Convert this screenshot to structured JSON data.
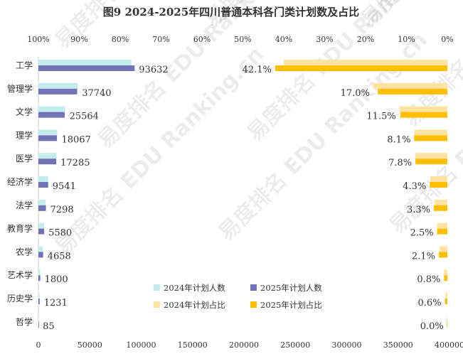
{
  "chart_data": {
    "title": "图9  2024-2025年四川普通本科各门类计划数及占比",
    "categories": [
      "工学",
      "管理学",
      "文学",
      "理学",
      "医学",
      "经济学",
      "法学",
      "教育学",
      "农学",
      "艺术学",
      "历史学",
      "哲学"
    ],
    "left_panel": {
      "type": "bar",
      "orientation": "horizontal",
      "xlim": [
        0,
        400000
      ],
      "x_ticks": [
        "0",
        "50000",
        "100000",
        "150000",
        "200000",
        "250000",
        "300000",
        "350000",
        "400000"
      ],
      "series": [
        {
          "name": "2024年计划人数",
          "color": "#c5ecec",
          "values": [
            90500,
            38200,
            26000,
            18300,
            17400,
            9400,
            7100,
            5500,
            4300,
            1700,
            1200,
            90
          ]
        },
        {
          "name": "2025年计划人数",
          "color": "#7272b6",
          "values": [
            93632,
            37740,
            25564,
            18067,
            17285,
            9541,
            7298,
            5580,
            4658,
            1800,
            1231,
            85
          ]
        }
      ],
      "data_labels": [
        "93632",
        "37740",
        "25564",
        "18067",
        "17285",
        "9541",
        "7298",
        "5580",
        "4658",
        "1800",
        "1231",
        "85"
      ]
    },
    "right_panel": {
      "type": "bar",
      "orientation": "horizontal",
      "direction": "reversed",
      "xlim": [
        0,
        100
      ],
      "x_ticks": [
        "100%",
        "90%",
        "80%",
        "70%",
        "60%",
        "50%",
        "40%",
        "30%",
        "20%",
        "10%",
        "0%"
      ],
      "series": [
        {
          "name": "2024年计划占比",
          "color": "#ffe3a0",
          "values": [
            40.0,
            18.1,
            11.7,
            8.1,
            7.8,
            4.2,
            3.2,
            2.5,
            1.9,
            0.8,
            0.5,
            0.04
          ]
        },
        {
          "name": "2025年计划占比",
          "color": "#fdbf00",
          "values": [
            42.1,
            17.0,
            11.5,
            8.1,
            7.8,
            4.3,
            3.3,
            2.5,
            2.1,
            0.8,
            0.6,
            0.04
          ]
        }
      ],
      "data_labels": [
        "42.1%",
        "17.0%",
        "11.5%",
        "8.1%",
        "7.8%",
        "4.3%",
        "3.3%",
        "2.5%",
        "2.1%",
        "0.8%",
        "0.6%",
        "0.0%"
      ]
    },
    "legend": {
      "placement": "bottom-center",
      "items": [
        "2024年计划人数",
        "2025年计划人数",
        "2024年计划占比",
        "2025年计划占比"
      ]
    },
    "watermark": "易度排名 EDU Ranking.cn"
  }
}
